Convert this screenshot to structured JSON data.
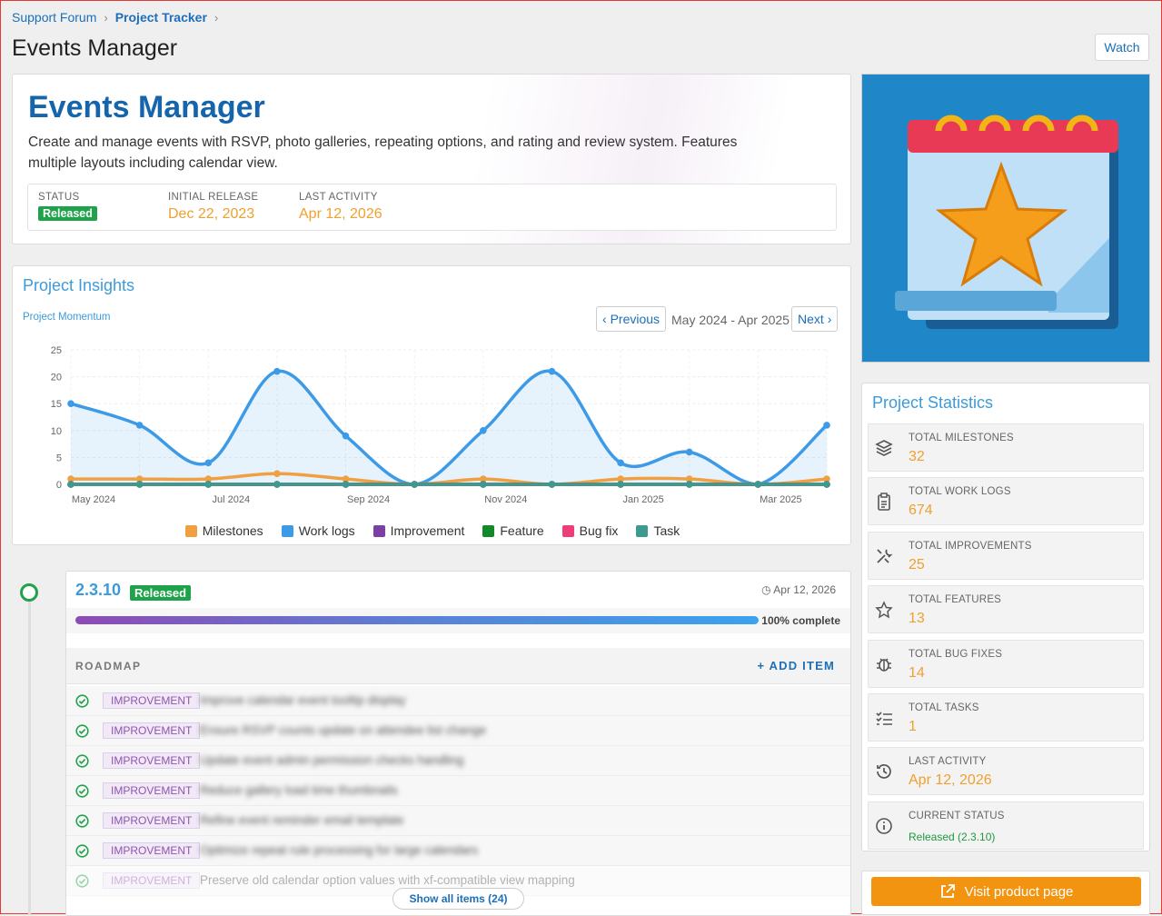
{
  "breadcrumb": {
    "items": [
      "Support Forum",
      "Project Tracker"
    ]
  },
  "page": {
    "title": "Events Manager",
    "watch_label": "Watch"
  },
  "hero": {
    "title": "Events Manager",
    "description": "Create and manage events with RSVP, photo galleries, repeating options, and rating and review system. Features multiple layouts including calendar view.",
    "status_label": "STATUS",
    "status_value": "Released",
    "release_label": "INITIAL RELEASE",
    "release_value": "Dec 22, 2023",
    "activity_label": "LAST ACTIVITY",
    "activity_value": "Apr 12, 2026"
  },
  "insights": {
    "title": "Project Insights",
    "subtitle": "Project Momentum",
    "prev_label": "Previous",
    "next_label": "Next",
    "range": "May 2024 - Apr 2025"
  },
  "chart_data": {
    "type": "area",
    "x": [
      "May 2024",
      "Jun 2024",
      "Jul 2024",
      "Aug 2024",
      "Sep 2024",
      "Oct 2024",
      "Nov 2024",
      "Dec 2024",
      "Jan 2025",
      "Feb 2025",
      "Mar 2025",
      "Apr 2025"
    ],
    "tick_labels": [
      "May 2024",
      "Jul 2024",
      "Sep 2024",
      "Nov 2024",
      "Jan 2025",
      "Mar 2025"
    ],
    "ylim": [
      0,
      25
    ],
    "yticks": [
      0,
      5,
      10,
      15,
      20,
      25
    ],
    "grid": true,
    "legend": "bottom",
    "series": [
      {
        "name": "Milestones",
        "color": "#f0a040",
        "values": [
          1,
          1,
          1,
          2,
          1,
          0,
          1,
          0,
          1,
          1,
          0,
          1
        ]
      },
      {
        "name": "Work logs",
        "color": "#3d9ae6",
        "values": [
          15,
          11,
          4,
          21,
          9,
          0,
          10,
          21,
          4,
          6,
          0,
          11
        ]
      },
      {
        "name": "Improvement",
        "color": "#7b3fa5",
        "values": [
          0,
          0,
          0,
          0,
          0,
          0,
          0,
          0,
          0,
          0,
          0,
          0
        ]
      },
      {
        "name": "Feature",
        "color": "#118a2a",
        "values": [
          0,
          0,
          0,
          0,
          0,
          0,
          0,
          0,
          0,
          0,
          0,
          0
        ]
      },
      {
        "name": "Bug fix",
        "color": "#ef3d7a",
        "values": [
          0,
          0,
          0,
          0,
          0,
          0,
          0,
          0,
          0,
          0,
          0,
          0
        ]
      },
      {
        "name": "Task",
        "color": "#3c9a8f",
        "values": [
          0,
          0,
          0,
          0,
          0,
          0,
          0,
          0,
          0,
          0,
          0,
          0
        ]
      }
    ]
  },
  "release": {
    "version": "2.3.10",
    "badge": "Released",
    "date": "Apr 12, 2026",
    "progress_percent": 100,
    "progress_label": "100% complete",
    "roadmap_label": "ROADMAP",
    "add_label": "+ ADD ITEM",
    "items": [
      {
        "tag": "IMPROVEMENT",
        "text": "Improve calendar event tooltip display"
      },
      {
        "tag": "IMPROVEMENT",
        "text": "Ensure RSVP counts update on attendee list change"
      },
      {
        "tag": "IMPROVEMENT",
        "text": "Update event admin permission checks handling"
      },
      {
        "tag": "IMPROVEMENT",
        "text": "Reduce gallery load time thumbnails"
      },
      {
        "tag": "IMPROVEMENT",
        "text": "Refine event reminder email template"
      },
      {
        "tag": "IMPROVEMENT",
        "text": "Optimize repeat rule processing for large calendars"
      },
      {
        "tag": "IMPROVEMENT",
        "text": "Preserve old calendar option values with xf-compatible view mapping"
      }
    ],
    "show_all_label": "Show all items (24)"
  },
  "stats": {
    "title": "Project Statistics",
    "items": [
      {
        "label": "TOTAL MILESTONES",
        "value": "32",
        "icon": "layers-icon"
      },
      {
        "label": "TOTAL WORK LOGS",
        "value": "674",
        "icon": "clipboard-icon"
      },
      {
        "label": "TOTAL IMPROVEMENTS",
        "value": "25",
        "icon": "tools-icon"
      },
      {
        "label": "TOTAL FEATURES",
        "value": "13",
        "icon": "star-icon"
      },
      {
        "label": "TOTAL BUG FIXES",
        "value": "14",
        "icon": "bug-icon"
      },
      {
        "label": "TOTAL TASKS",
        "value": "1",
        "icon": "tasks-icon"
      },
      {
        "label": "LAST ACTIVITY",
        "value": "Apr 12, 2026",
        "icon": "history-icon"
      },
      {
        "label": "CURRENT STATUS",
        "value": "Released (2.3.10)",
        "icon": "info-icon"
      }
    ]
  },
  "visit": {
    "label": "Visit product page"
  }
}
